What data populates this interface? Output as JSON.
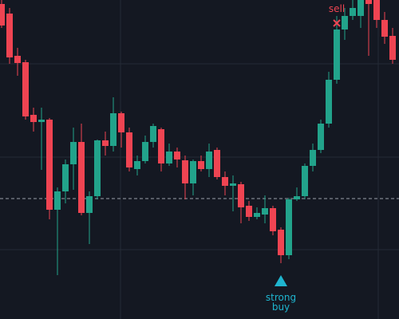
{
  "chart_data": {
    "type": "candlestick",
    "open": [
      395,
      383,
      330,
      322,
      256,
      247,
      250,
      137,
      160,
      194,
      222,
      133,
      154,
      224,
      217,
      258,
      234,
      188,
      198,
      222,
      238,
      195,
      210,
      199,
      170,
      198,
      188,
      212,
      178,
      167,
      169,
      142,
      128,
      131,
      139,
      112,
      80,
      150,
      154,
      192,
      212,
      245,
      300,
      363,
      380,
      380,
      400,
      400,
      375,
      355
    ],
    "close": [
      368,
      328,
      321,
      254,
      247,
      250,
      137,
      160,
      194,
      222,
      133,
      154,
      224,
      217,
      258,
      234,
      190,
      198,
      222,
      242,
      195,
      210,
      200,
      170,
      198,
      188,
      210,
      178,
      167,
      170,
      140,
      128,
      133,
      139,
      110,
      80,
      150,
      154,
      192,
      212,
      245,
      300,
      363,
      380,
      390,
      400,
      395,
      375,
      354,
      325
    ],
    "high": [
      400,
      390,
      340,
      325,
      265,
      265,
      252,
      165,
      200,
      240,
      245,
      160,
      225,
      235,
      278,
      260,
      240,
      205,
      230,
      245,
      240,
      220,
      215,
      205,
      200,
      205,
      220,
      215,
      185,
      180,
      172,
      148,
      140,
      155,
      142,
      115,
      152,
      165,
      195,
      220,
      250,
      310,
      380,
      390,
      400,
      400,
      400,
      400,
      385,
      365
    ],
    "low": [
      365,
      320,
      305,
      250,
      235,
      187,
      125,
      55,
      145,
      162,
      130,
      94,
      150,
      205,
      210,
      215,
      185,
      180,
      195,
      215,
      185,
      192,
      190,
      150,
      155,
      185,
      178,
      175,
      155,
      135,
      120,
      123,
      125,
      120,
      105,
      70,
      75,
      148,
      150,
      185,
      208,
      240,
      295,
      350,
      375,
      365,
      330,
      365,
      345,
      320
    ],
    "up_color": "#22a38b",
    "down_color": "#ef4452",
    "ylim": [
      0,
      400
    ],
    "reference_line": 151,
    "annotations": [
      {
        "lines": [
          "sell"
        ],
        "index": 42,
        "side": "above",
        "color": "#ef4452"
      },
      {
        "lines": [
          "strong",
          "buy"
        ],
        "index": 35,
        "side": "below",
        "color": "#1fb5cf"
      }
    ]
  }
}
